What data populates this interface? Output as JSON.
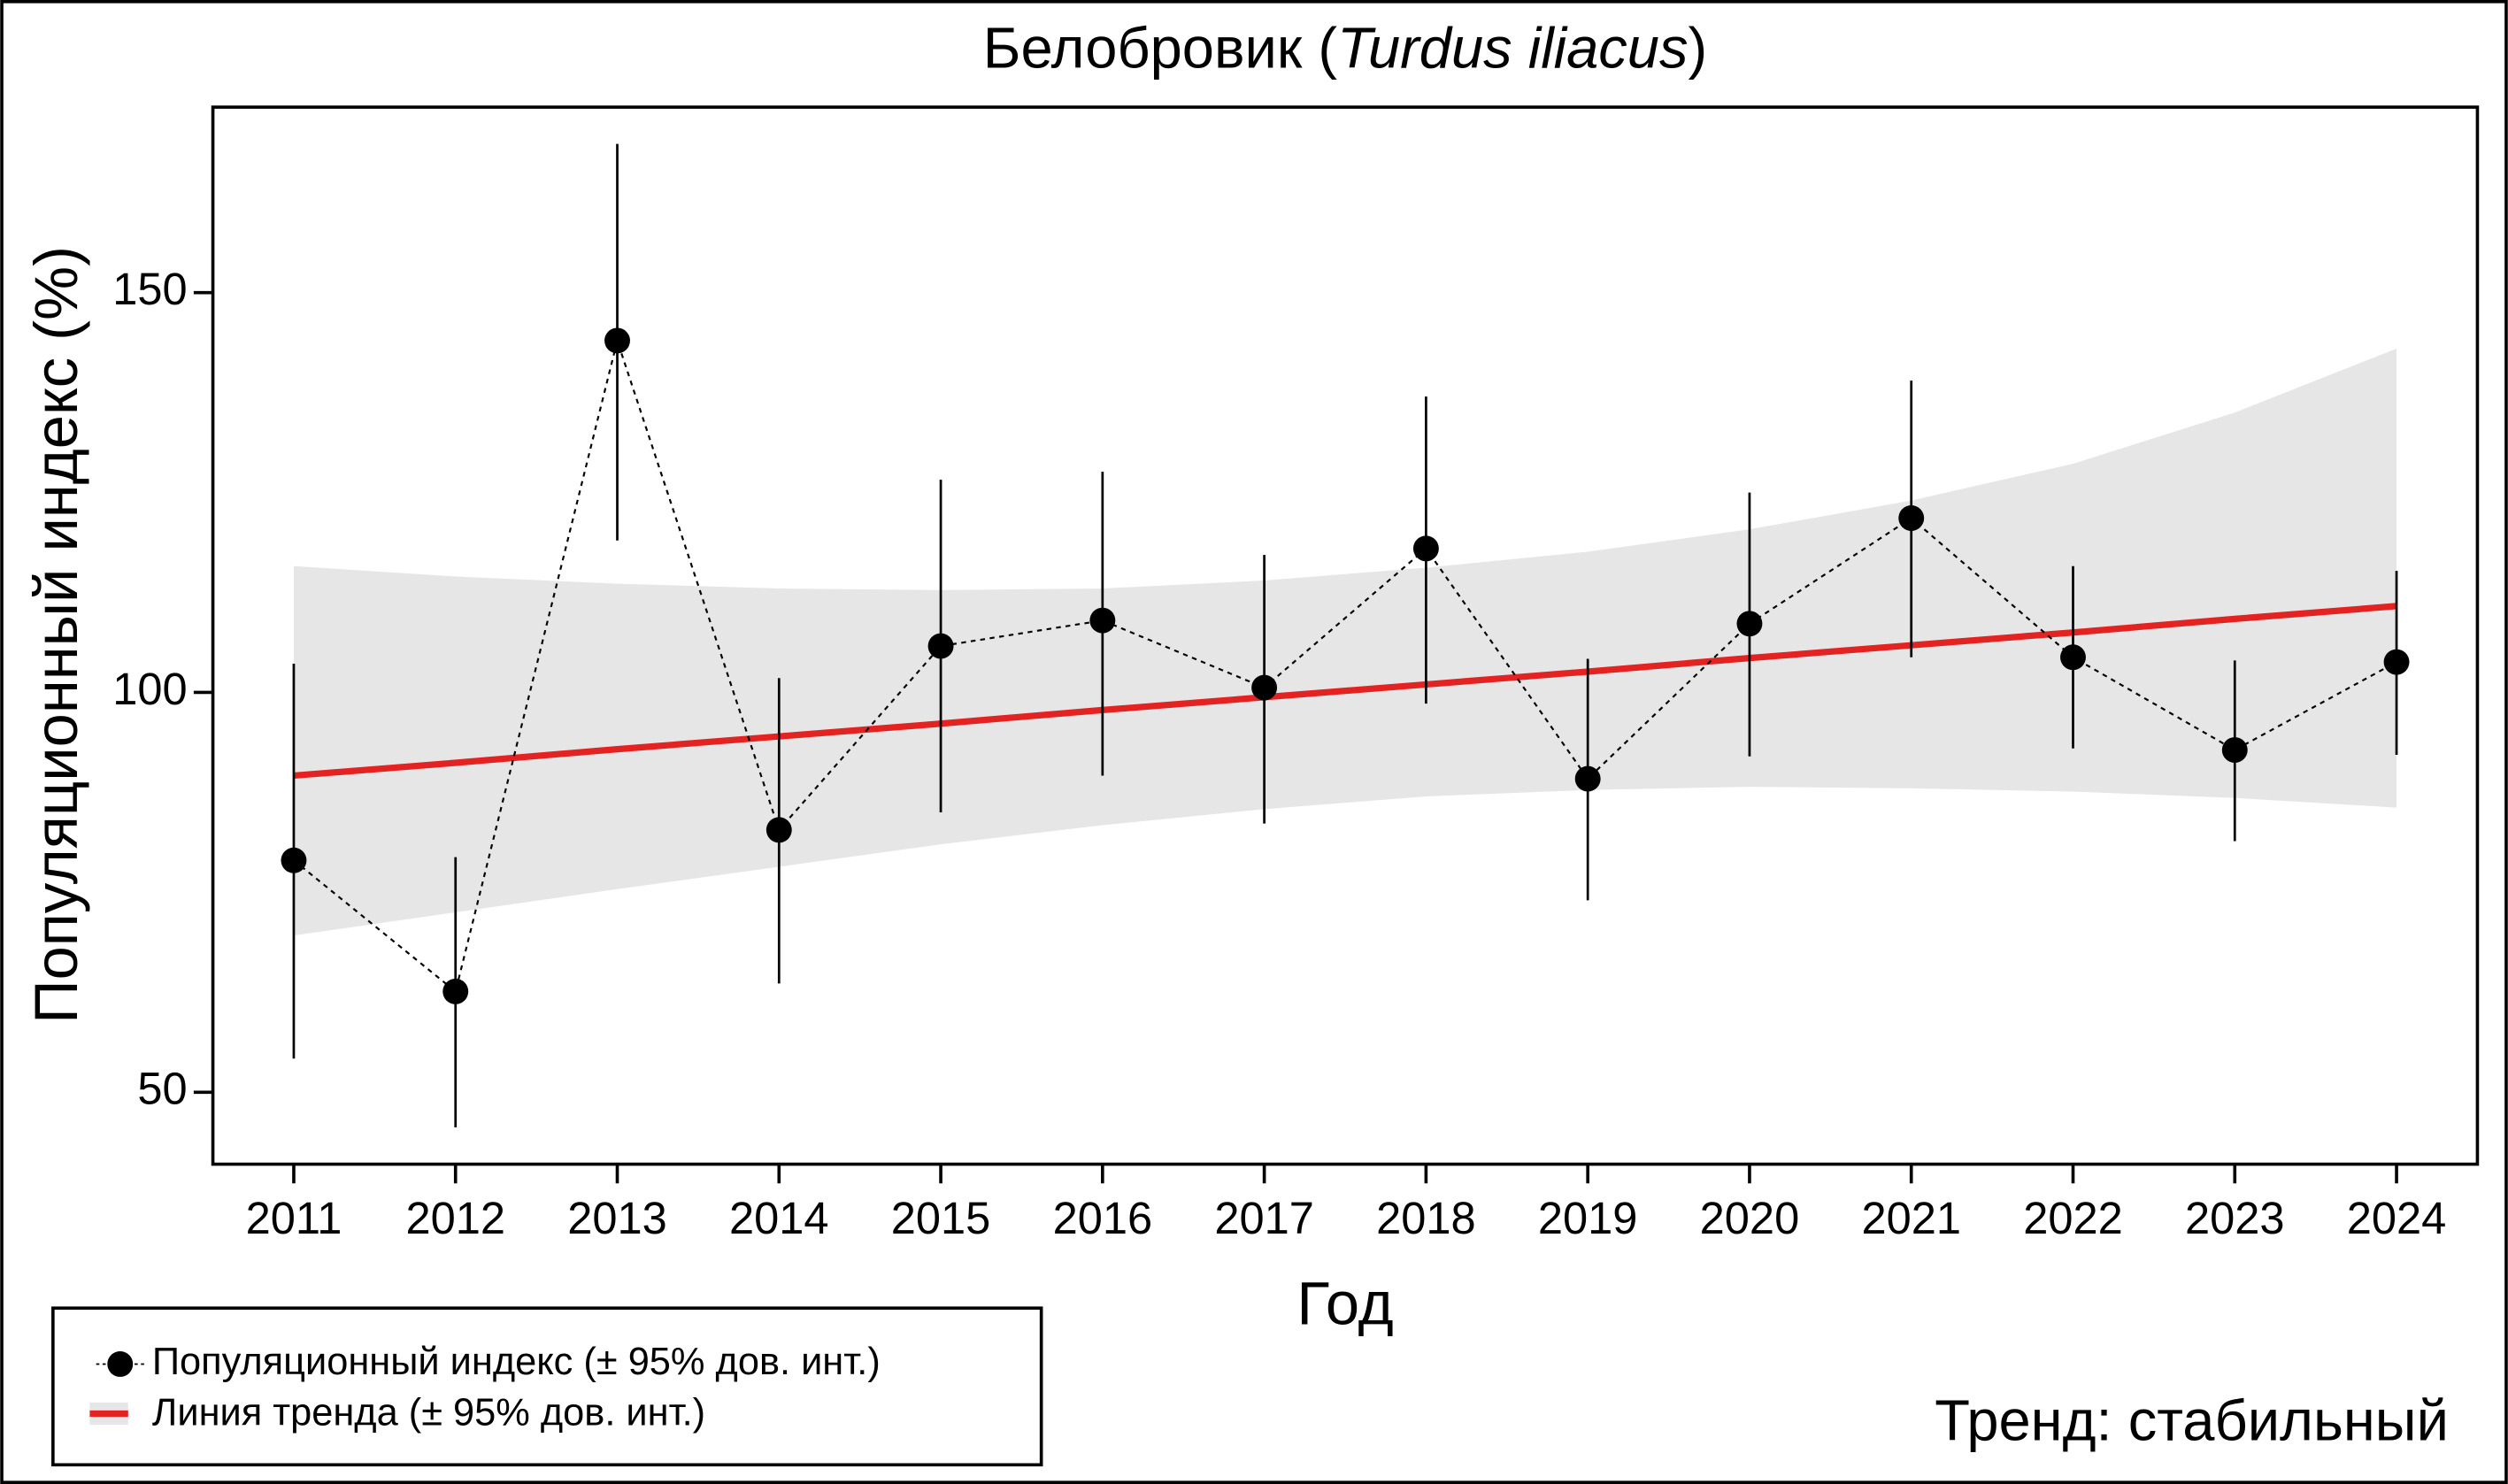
{
  "chart_data": {
    "type": "line",
    "title": {
      "text": "Белобровик (",
      "italic": "Turdus iliacus",
      "close": ")"
    },
    "xlabel": "Год",
    "ylabel": "Популяционный индекс (%)",
    "x": [
      2011,
      2012,
      2013,
      2014,
      2015,
      2016,
      2017,
      2018,
      2019,
      2020,
      2021,
      2022,
      2023,
      2024
    ],
    "xlim": [
      2010.5,
      2024.5
    ],
    "xticks": [
      2011,
      2012,
      2013,
      2014,
      2015,
      2016,
      2017,
      2018,
      2019,
      2020,
      2021,
      2022,
      2023,
      2024
    ],
    "ylim": [
      41,
      173.2
    ],
    "yticks": [
      50,
      100,
      150
    ],
    "series": [
      {
        "name": "Популяционный индекс (± 95% дов. инт.)",
        "color": "#000000",
        "values": [
          79,
          62.6,
          144,
          82.8,
          105.8,
          109,
          100.6,
          118,
          89.2,
          108.6,
          121.8,
          104.4,
          92.8,
          103.8
        ],
        "lower": [
          54.2,
          45.6,
          119,
          63.6,
          85,
          89.6,
          83.6,
          98.6,
          74,
          92,
          104.4,
          93,
          81.4,
          92.2
        ],
        "upper": [
          103.6,
          79.4,
          168.6,
          101.8,
          126.6,
          127.6,
          117.2,
          137,
          104.2,
          125,
          139,
          115.8,
          104,
          115.2
        ]
      },
      {
        "name": "Линия тренда (± 95% дов. инт.)",
        "color": "#e32222",
        "band_color": "#e6e6e6",
        "values": [
          89.6,
          91.2,
          92.9,
          94.5,
          96.1,
          97.8,
          99.4,
          101.0,
          102.6,
          104.3,
          105.9,
          107.5,
          109.2,
          110.8
        ],
        "lower": [
          69.6,
          72.5,
          75.4,
          78.2,
          81,
          83.4,
          85.4,
          87,
          87.8,
          88.2,
          88,
          87.6,
          86.8,
          85.6
        ],
        "upper": [
          115.8,
          114.5,
          113.6,
          113,
          112.8,
          113,
          114,
          115.6,
          117.6,
          120.4,
          124,
          128.6,
          135,
          143
        ]
      }
    ],
    "annotation": {
      "text": "Тренд: стабильный",
      "color": "#000080"
    }
  }
}
